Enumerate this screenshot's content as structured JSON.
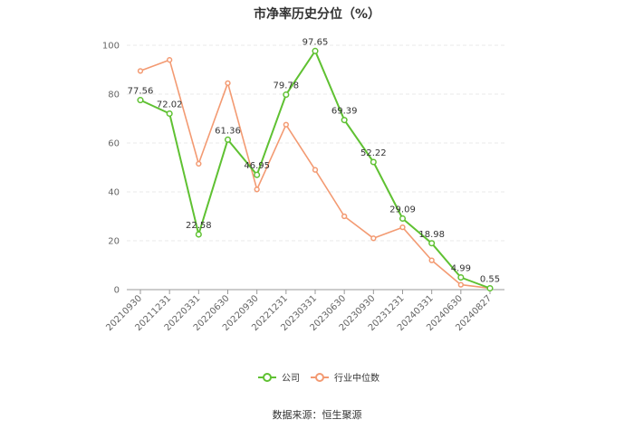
{
  "chart_data": {
    "type": "line",
    "title": "市净率历史分位（%）",
    "categories": [
      "20210930",
      "20211231",
      "20220331",
      "20220630",
      "20220930",
      "20221231",
      "20230331",
      "20230630",
      "20230930",
      "20231231",
      "20240331",
      "20240630",
      "20240827"
    ],
    "ylim": [
      0,
      100
    ],
    "yticks": [
      0,
      20,
      40,
      60,
      80,
      100
    ],
    "grid": true,
    "legend": "bottom-center",
    "series": [
      {
        "name": "公司",
        "color": "#5fc132",
        "values": [
          77.56,
          72.02,
          22.58,
          61.36,
          46.95,
          79.78,
          97.65,
          69.39,
          52.22,
          29.09,
          18.98,
          4.99,
          0.55
        ],
        "labels": [
          "77.56",
          "72.02",
          "22.58",
          "61.36",
          "46.95",
          "79.78",
          "97.65",
          "69.39",
          "52.22",
          "29.09",
          "18.98",
          "4.99",
          "0.55"
        ]
      },
      {
        "name": "行业中位数",
        "color": "#f39a72",
        "values": [
          89.5,
          94.0,
          51.5,
          84.5,
          41.0,
          67.5,
          49.0,
          30.0,
          21.0,
          25.5,
          12.0,
          2.0,
          0.6
        ]
      }
    ]
  },
  "source": "数据来源：恒生聚源"
}
